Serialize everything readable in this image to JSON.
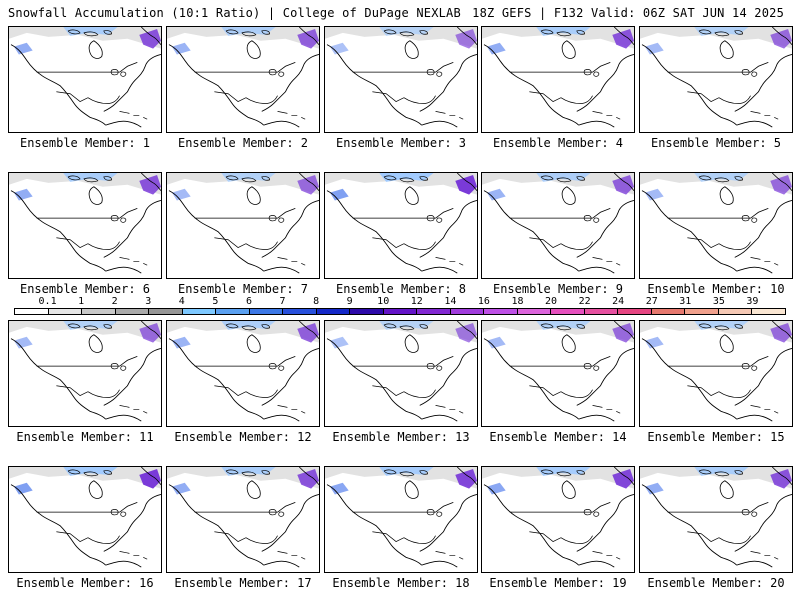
{
  "header": {
    "title_left": "Snowfall Accumulation (10:1 Ratio) | College of DuPage NEXLAB",
    "title_right": "18Z GEFS | F132 Valid: 06Z SAT JUN 14 2025"
  },
  "panels": [
    {
      "label": "Ensemble Member: 1",
      "snow_intensity": 0.8
    },
    {
      "label": "Ensemble Member: 2",
      "snow_intensity": 0.7
    },
    {
      "label": "Ensemble Member: 3",
      "snow_intensity": 0.5
    },
    {
      "label": "Ensemble Member: 4",
      "snow_intensity": 0.8
    },
    {
      "label": "Ensemble Member: 5",
      "snow_intensity": 0.6
    },
    {
      "label": "Ensemble Member: 6",
      "snow_intensity": 0.8
    },
    {
      "label": "Ensemble Member: 7",
      "snow_intensity": 0.6
    },
    {
      "label": "Ensemble Member: 8",
      "snow_intensity": 1.0
    },
    {
      "label": "Ensemble Member: 9",
      "snow_intensity": 0.7
    },
    {
      "label": "Ensemble Member: 10",
      "snow_intensity": 0.6
    },
    {
      "label": "Ensemble Member: 11",
      "snow_intensity": 0.6
    },
    {
      "label": "Ensemble Member: 12",
      "snow_intensity": 0.7
    },
    {
      "label": "Ensemble Member: 13",
      "snow_intensity": 0.5
    },
    {
      "label": "Ensemble Member: 14",
      "snow_intensity": 0.6
    },
    {
      "label": "Ensemble Member: 15",
      "snow_intensity": 0.6
    },
    {
      "label": "Ensemble Member: 16",
      "snow_intensity": 1.0
    },
    {
      "label": "Ensemble Member: 17",
      "snow_intensity": 0.8
    },
    {
      "label": "Ensemble Member: 18",
      "snow_intensity": 0.9
    },
    {
      "label": "Ensemble Member: 19",
      "snow_intensity": 0.9
    },
    {
      "label": "Ensemble Member: 20",
      "snow_intensity": 0.8
    }
  ],
  "color_scale": {
    "labels": [
      "0.1",
      "1",
      "2",
      "3",
      "4",
      "5",
      "6",
      "7",
      "8",
      "9",
      "10",
      "12",
      "14",
      "16",
      "18",
      "20",
      "22",
      "24",
      "27",
      "31",
      "35",
      "39"
    ],
    "colors": [
      "#ffffff",
      "#e6e6e6",
      "#c8c8c8",
      "#aaaaaa",
      "#969696",
      "#7dc8ff",
      "#5aa0f0",
      "#3c78e6",
      "#2850dc",
      "#1428c8",
      "#2d0aaa",
      "#6414c8",
      "#8228d2",
      "#a03cdc",
      "#be50e6",
      "#dc64dc",
      "#e650be",
      "#e650a0",
      "#e64682",
      "#e6786e",
      "#f0a08c",
      "#f5c8b4",
      "#fae6d2"
    ]
  }
}
